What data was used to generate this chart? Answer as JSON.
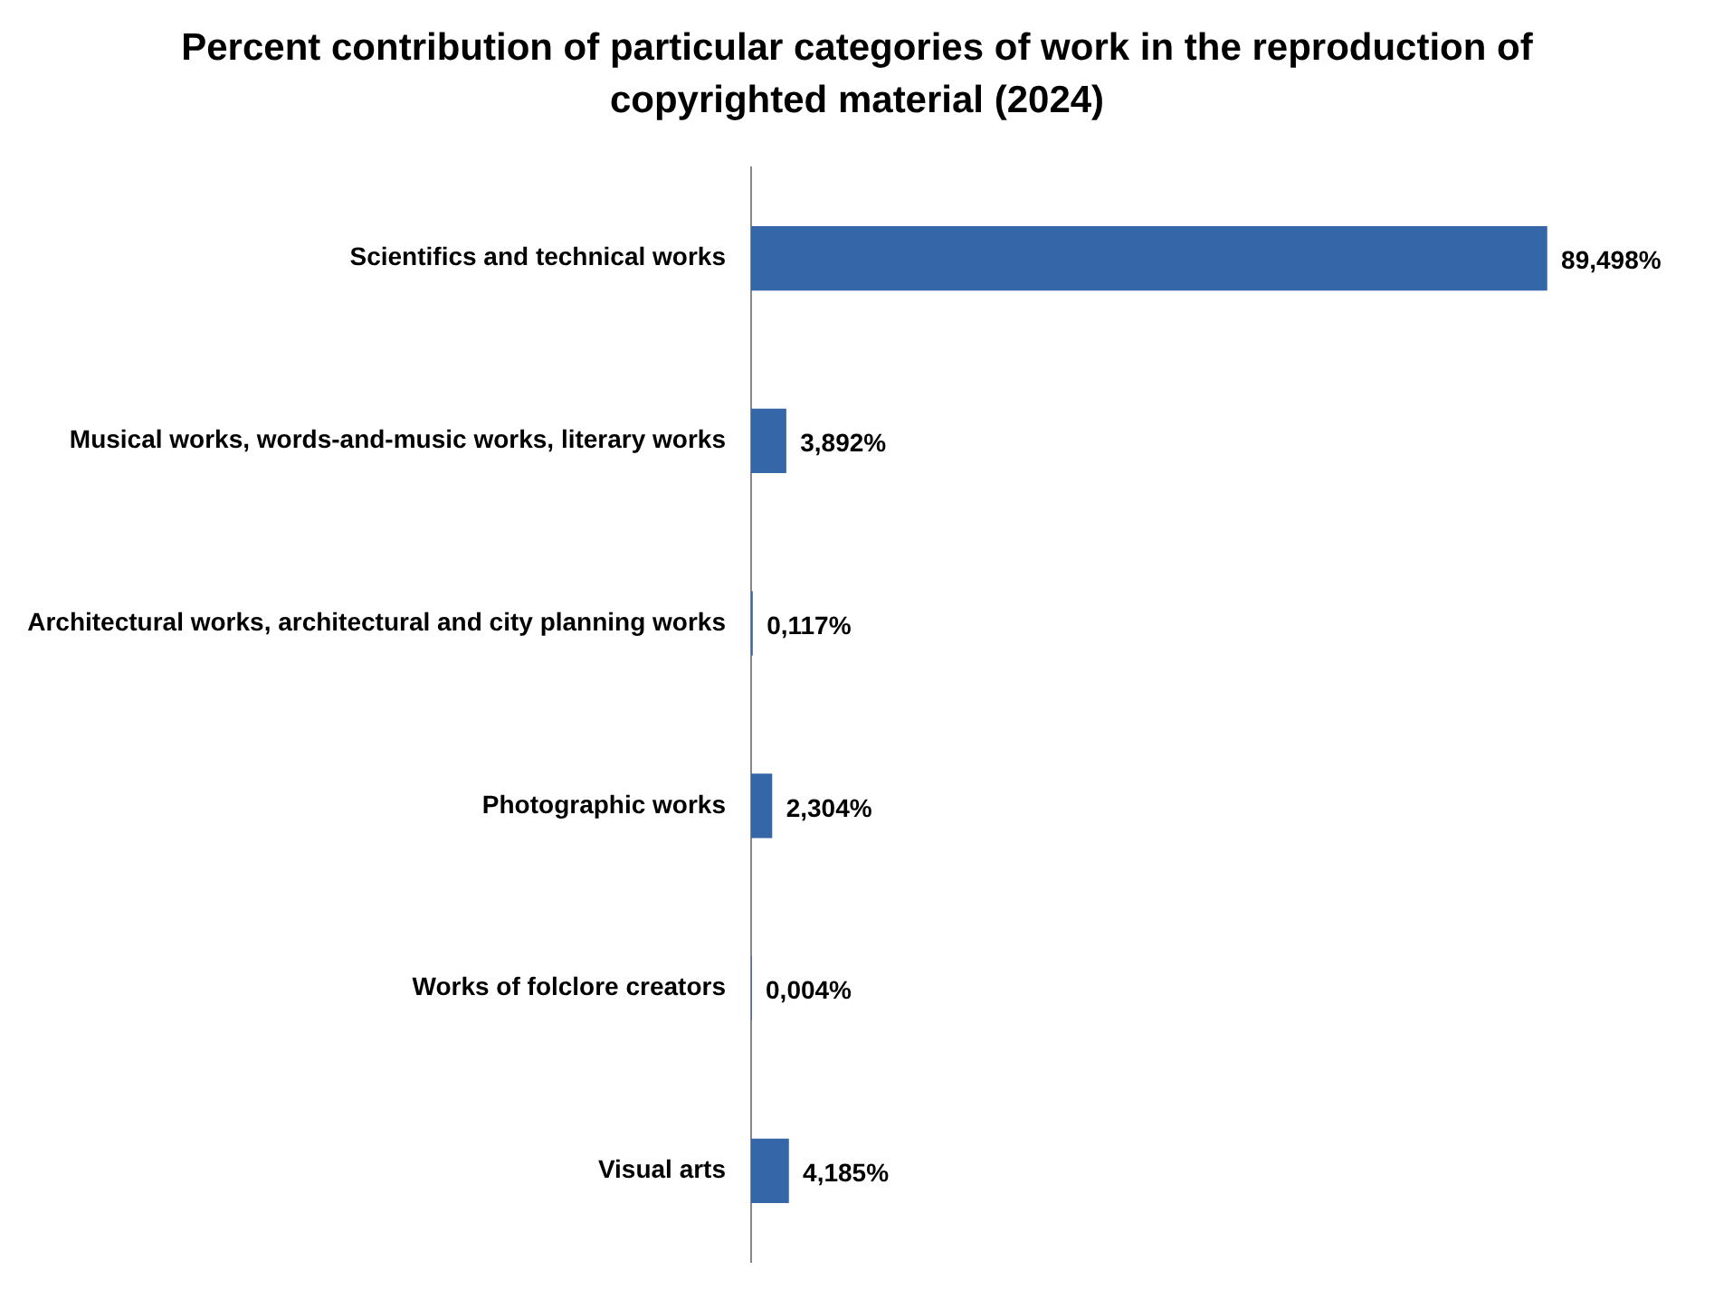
{
  "chart_data": {
    "type": "bar",
    "orientation": "horizontal",
    "title": "Percent contribution of particular categories of work in the reproduction of copyrighted material (2024)",
    "categories": [
      "Scientifics and technical works",
      "Musical works, words-and-music works, literary works",
      "Architectural works, architectural and city planning works",
      "Photographic works",
      "Works of folclore creators",
      "Visual arts"
    ],
    "values": [
      89.498,
      3.892,
      0.117,
      2.304,
      0.004,
      4.185
    ],
    "value_labels": [
      "89,498%",
      "3,892%",
      "0,117%",
      "2,304%",
      "0,004%",
      "4,185%"
    ],
    "color": "#3566a8",
    "legend": false,
    "tick_labels": "y"
  }
}
